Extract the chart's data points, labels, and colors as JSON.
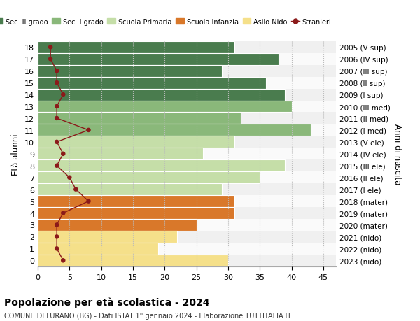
{
  "ages": [
    18,
    17,
    16,
    15,
    14,
    13,
    12,
    11,
    10,
    9,
    8,
    7,
    6,
    5,
    4,
    3,
    2,
    1,
    0
  ],
  "year_labels": [
    "2005 (V sup)",
    "2006 (IV sup)",
    "2007 (III sup)",
    "2008 (II sup)",
    "2009 (I sup)",
    "2010 (III med)",
    "2011 (II med)",
    "2012 (I med)",
    "2013 (V ele)",
    "2014 (IV ele)",
    "2015 (III ele)",
    "2016 (II ele)",
    "2017 (I ele)",
    "2018 (mater)",
    "2019 (mater)",
    "2020 (mater)",
    "2021 (nido)",
    "2022 (nido)",
    "2023 (nido)"
  ],
  "bar_values": [
    31,
    38,
    29,
    36,
    39,
    40,
    32,
    43,
    31,
    26,
    39,
    35,
    29,
    31,
    31,
    25,
    22,
    19,
    30
  ],
  "bar_colors": [
    "#4a7c4e",
    "#4a7c4e",
    "#4a7c4e",
    "#4a7c4e",
    "#4a7c4e",
    "#8ab87a",
    "#8ab87a",
    "#8ab87a",
    "#c5dea8",
    "#c5dea8",
    "#c5dea8",
    "#c5dea8",
    "#c5dea8",
    "#d9782a",
    "#d9782a",
    "#d9782a",
    "#f5e08a",
    "#f5e08a",
    "#f5e08a"
  ],
  "row_bg_colors": [
    "#e8e8e8",
    "#ffffff",
    "#e8e8e8",
    "#ffffff",
    "#e8e8e8",
    "#e8e8e8",
    "#ffffff",
    "#e8e8e8",
    "#e8e8e8",
    "#ffffff",
    "#e8e8e8",
    "#ffffff",
    "#e8e8e8",
    "#e8e8e8",
    "#ffffff",
    "#e8e8e8",
    "#e8e8e8",
    "#ffffff",
    "#e8e8e8"
  ],
  "stranieri_values": [
    2,
    2,
    3,
    3,
    4,
    3,
    3,
    8,
    3,
    4,
    3,
    5,
    6,
    8,
    4,
    3,
    3,
    3,
    4
  ],
  "stranieri_color": "#8b1a1a",
  "title": "Popolazione per età scolastica - 2024",
  "subtitle": "COMUNE DI LURANO (BG) - Dati ISTAT 1° gennaio 2024 - Elaborazione TUTTITALIA.IT",
  "ylabel": "Età alunni",
  "ylabel2": "Anni di nascita",
  "xlim": [
    0,
    47
  ],
  "xticks": [
    0,
    5,
    10,
    15,
    20,
    25,
    30,
    35,
    40,
    45
  ],
  "legend_labels": [
    "Sec. II grado",
    "Sec. I grado",
    "Scuola Primaria",
    "Scuola Infanzia",
    "Asilo Nido",
    "Stranieri"
  ],
  "legend_colors": [
    "#4a7c4e",
    "#8ab87a",
    "#c5dea8",
    "#d9782a",
    "#f5e08a",
    "#8b1a1a"
  ],
  "background_color": "#ffffff",
  "grid_color": "#bbbbbb",
  "bar_height": 1.0
}
